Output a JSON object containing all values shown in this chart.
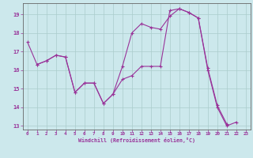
{
  "xlabel": "Windchill (Refroidissement éolien,°C)",
  "bg_color": "#cce8ec",
  "line_color": "#993399",
  "grid_color": "#aacccc",
  "text_color": "#993399",
  "axis_color": "#666666",
  "xlim": [
    -0.5,
    23.5
  ],
  "ylim": [
    12.8,
    19.6
  ],
  "xticks": [
    0,
    1,
    2,
    3,
    4,
    5,
    6,
    7,
    8,
    9,
    10,
    11,
    12,
    13,
    14,
    15,
    16,
    17,
    18,
    19,
    20,
    21,
    22,
    23
  ],
  "yticks": [
    13,
    14,
    15,
    16,
    17,
    18,
    19
  ],
  "series1_x": [
    0,
    1,
    2,
    3,
    4,
    5,
    6,
    7,
    8,
    9,
    10,
    11,
    12,
    13,
    14,
    15,
    16,
    17,
    18,
    19,
    20,
    21,
    22
  ],
  "series1_y": [
    17.5,
    16.3,
    16.5,
    16.8,
    16.7,
    14.8,
    15.3,
    15.3,
    14.2,
    14.7,
    15.5,
    15.7,
    16.2,
    16.2,
    16.2,
    19.2,
    19.3,
    19.1,
    18.8,
    16.0,
    14.0,
    13.0,
    13.2
  ],
  "series2_x": [
    1,
    2,
    3,
    4,
    5,
    6,
    7,
    8,
    9,
    10,
    11,
    12,
    13,
    14,
    15,
    16,
    17,
    18,
    19,
    20,
    21
  ],
  "series2_y": [
    16.3,
    16.5,
    16.8,
    16.7,
    14.8,
    15.3,
    15.3,
    14.2,
    14.7,
    16.2,
    18.0,
    18.5,
    18.3,
    18.2,
    18.9,
    19.3,
    19.1,
    18.8,
    16.1,
    14.1,
    13.1
  ]
}
